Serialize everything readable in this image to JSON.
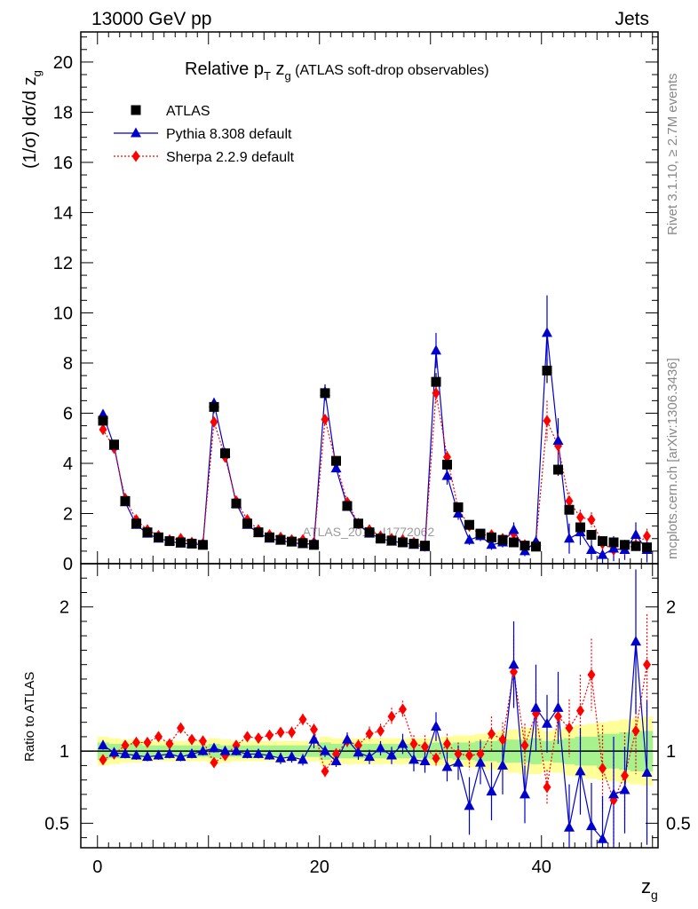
{
  "header": {
    "left": "13000 GeV pp",
    "right": "Jets",
    "side_top": "Rivet 3.1.10, ≥ 2.7M events",
    "side_bottom": "mcplots.cern.ch [arXiv:1306.3436]",
    "watermark": "ATLAS_2019_I1772062"
  },
  "colors": {
    "data": "#000000",
    "pythia": "#0000cc",
    "sherpa": "#ff0000",
    "band_inner": "#a6f28c",
    "band_outer": "#ffff99",
    "ratio_line": "#2e8b2e"
  },
  "chart_data": {
    "type": "scatter",
    "title": {
      "main": "Relative p",
      "sub_T": "T",
      "zg": " z",
      "sub_g": "g",
      "rest": " (ATLAS soft-drop observables)"
    },
    "ylabel_main": "(1/σ) dσ/d z",
    "ylabel_sub": "g",
    "ylabel_ratio": "Ratio to ATLAS",
    "xlabel": "z",
    "xlabel_sub": "g",
    "xlim": [
      -1.5,
      50.5
    ],
    "ylim_main": [
      0,
      21.2
    ],
    "ylim_ratio": [
      0.33,
      2.3
    ],
    "x_ticks": [
      0,
      20,
      40
    ],
    "x_tick_labels": [
      "0",
      "20",
      "40"
    ],
    "y_ticks_main": [
      0,
      2,
      4,
      6,
      8,
      10,
      12,
      14,
      16,
      18,
      20
    ],
    "y_tick_labels_main": [
      "0",
      "2",
      "4",
      "6",
      "8",
      "10",
      "12",
      "14",
      "16",
      "18",
      "20"
    ],
    "y_ticks_ratio": [
      0.5,
      1,
      2
    ],
    "y_tick_labels_ratio": [
      "0.5",
      "1",
      "2"
    ],
    "legend": [
      {
        "name": "ATLAS",
        "marker": "square"
      },
      {
        "name": "Pythia 8.308 default",
        "marker": "triangle"
      },
      {
        "name": "Sherpa 2.2.9 default",
        "marker": "diamond"
      }
    ],
    "x": [
      0.5,
      1.5,
      2.5,
      3.5,
      4.5,
      5.5,
      6.5,
      7.5,
      8.5,
      9.5,
      10.5,
      11.5,
      12.5,
      13.5,
      14.5,
      15.5,
      16.5,
      17.5,
      18.5,
      19.5,
      20.5,
      21.5,
      22.5,
      23.5,
      24.5,
      25.5,
      26.5,
      27.5,
      28.5,
      29.5,
      30.5,
      31.5,
      32.5,
      33.5,
      34.5,
      35.5,
      36.5,
      37.5,
      38.5,
      39.5,
      40.5,
      41.5,
      42.5,
      43.5,
      44.5,
      45.5,
      46.5,
      47.5,
      48.5,
      49.5
    ],
    "series": [
      {
        "name": "ATLAS",
        "values": [
          5.7,
          4.75,
          2.5,
          1.6,
          1.25,
          1.05,
          0.9,
          0.85,
          0.8,
          0.75,
          6.25,
          4.4,
          2.4,
          1.6,
          1.25,
          1.05,
          0.95,
          0.88,
          0.82,
          0.75,
          6.8,
          4.1,
          2.3,
          1.6,
          1.25,
          1.0,
          0.92,
          0.85,
          0.8,
          0.72,
          7.25,
          3.95,
          2.25,
          1.55,
          1.2,
          1.05,
          0.95,
          0.85,
          0.72,
          0.68,
          7.7,
          3.75,
          2.15,
          1.45,
          1.15,
          0.9,
          0.85,
          0.75,
          0.7,
          0.65
        ],
        "errors": [
          0.2,
          0.15,
          0.1,
          0.07,
          0.05,
          0.05,
          0.04,
          0.04,
          0.04,
          0.04,
          0.25,
          0.15,
          0.1,
          0.07,
          0.05,
          0.05,
          0.04,
          0.04,
          0.04,
          0.04,
          0.3,
          0.15,
          0.1,
          0.07,
          0.05,
          0.05,
          0.04,
          0.04,
          0.04,
          0.04,
          0.35,
          0.2,
          0.12,
          0.08,
          0.06,
          0.06,
          0.05,
          0.05,
          0.05,
          0.05,
          0.5,
          0.25,
          0.15,
          0.1,
          0.08,
          0.07,
          0.07,
          0.07,
          0.07,
          0.07
        ]
      },
      {
        "name": "Pythia 8.308 default",
        "values": [
          5.95,
          4.7,
          2.45,
          1.55,
          1.2,
          1.0,
          0.9,
          0.8,
          0.8,
          0.75,
          6.4,
          4.4,
          2.4,
          1.55,
          1.22,
          1.0,
          0.92,
          0.85,
          0.78,
          0.8,
          6.85,
          3.8,
          2.3,
          1.58,
          1.2,
          1.02,
          0.88,
          0.85,
          0.75,
          0.66,
          8.5,
          3.5,
          2.0,
          0.95,
          1.1,
          0.75,
          0.85,
          1.35,
          0.5,
          0.88,
          9.2,
          4.9,
          1.0,
          1.25,
          0.55,
          0.35,
          0.6,
          0.55,
          1.15,
          0.55
        ],
        "errors": [
          0.15,
          0.12,
          0.08,
          0.06,
          0.05,
          0.05,
          0.04,
          0.04,
          0.04,
          0.04,
          0.2,
          0.12,
          0.08,
          0.06,
          0.05,
          0.05,
          0.04,
          0.04,
          0.04,
          0.05,
          0.3,
          0.15,
          0.1,
          0.08,
          0.06,
          0.06,
          0.06,
          0.06,
          0.06,
          0.06,
          0.7,
          0.35,
          0.25,
          0.2,
          0.2,
          0.2,
          0.2,
          0.3,
          0.2,
          0.25,
          1.5,
          0.9,
          0.6,
          0.5,
          0.4,
          0.4,
          0.5,
          0.4,
          0.5,
          0.5
        ]
      },
      {
        "name": "Sherpa 2.2.9 default",
        "values": [
          5.35,
          4.6,
          2.6,
          1.75,
          1.35,
          1.12,
          0.95,
          1.0,
          0.85,
          0.8,
          5.65,
          4.25,
          2.5,
          1.75,
          1.35,
          1.15,
          1.05,
          0.95,
          0.95,
          0.85,
          5.75,
          4.0,
          2.45,
          1.6,
          1.35,
          1.1,
          1.0,
          0.95,
          0.85,
          0.7,
          6.8,
          4.25,
          2.2,
          1.5,
          1.15,
          1.15,
          1.0,
          1.2,
          0.75,
          0.85,
          5.7,
          4.7,
          2.5,
          1.85,
          1.75,
          0.8,
          0.55,
          0.6,
          0.75,
          1.1
        ],
        "errors": [
          0.12,
          0.1,
          0.07,
          0.05,
          0.05,
          0.05,
          0.04,
          0.04,
          0.04,
          0.04,
          0.15,
          0.1,
          0.07,
          0.06,
          0.05,
          0.05,
          0.05,
          0.05,
          0.05,
          0.05,
          0.2,
          0.12,
          0.08,
          0.06,
          0.06,
          0.06,
          0.06,
          0.06,
          0.06,
          0.06,
          0.4,
          0.25,
          0.15,
          0.12,
          0.12,
          0.12,
          0.12,
          0.15,
          0.12,
          0.12,
          0.8,
          0.5,
          0.35,
          0.3,
          0.3,
          0.25,
          0.25,
          0.25,
          0.25,
          0.3
        ]
      }
    ],
    "ratio": {
      "pythia": [
        1.04,
        0.99,
        0.98,
        0.97,
        0.96,
        0.97,
        0.98,
        0.96,
        0.98,
        1.0,
        1.02,
        1.0,
        1.0,
        0.98,
        0.98,
        0.97,
        0.95,
        0.96,
        0.94,
        1.08,
        1.0,
        0.93,
        1.08,
        0.99,
        0.96,
        1.02,
        0.97,
        1.05,
        0.94,
        0.93,
        1.17,
        0.89,
        0.92,
        0.62,
        0.92,
        0.72,
        0.9,
        1.6,
        0.7,
        1.3,
        1.19,
        1.3,
        0.47,
        0.86,
        0.48,
        0.39,
        0.7,
        0.73,
        1.76,
        0.85
      ],
      "pythia_err": [
        0.03,
        0.03,
        0.03,
        0.03,
        0.03,
        0.03,
        0.03,
        0.03,
        0.03,
        0.03,
        0.03,
        0.03,
        0.03,
        0.03,
        0.03,
        0.03,
        0.04,
        0.04,
        0.04,
        0.06,
        0.04,
        0.04,
        0.05,
        0.05,
        0.05,
        0.05,
        0.06,
        0.07,
        0.08,
        0.08,
        0.1,
        0.1,
        0.12,
        0.2,
        0.15,
        0.2,
        0.2,
        0.3,
        0.2,
        0.3,
        0.2,
        0.25,
        0.3,
        0.3,
        0.3,
        0.3,
        0.4,
        0.3,
        0.5,
        0.5
      ],
      "sherpa": [
        0.94,
        0.98,
        1.04,
        1.06,
        1.06,
        1.1,
        1.05,
        1.16,
        1.08,
        1.07,
        0.92,
        0.97,
        1.04,
        1.1,
        1.09,
        1.11,
        1.13,
        1.13,
        1.22,
        1.15,
        0.86,
        0.98,
        1.07,
        1.04,
        1.12,
        1.14,
        1.24,
        1.29,
        1.05,
        1.03,
        0.95,
        1.05,
        0.98,
        0.97,
        0.98,
        1.12,
        1.08,
        1.55,
        1.04,
        1.26,
        0.75,
        1.24,
        1.16,
        1.28,
        1.53,
        0.88,
        0.66,
        0.83,
        1.14,
        1.6
      ],
      "sherpa_err": [
        0.02,
        0.02,
        0.02,
        0.02,
        0.02,
        0.02,
        0.02,
        0.02,
        0.02,
        0.02,
        0.03,
        0.03,
        0.03,
        0.03,
        0.03,
        0.03,
        0.03,
        0.04,
        0.04,
        0.04,
        0.04,
        0.04,
        0.04,
        0.04,
        0.05,
        0.05,
        0.06,
        0.06,
        0.06,
        0.08,
        0.06,
        0.07,
        0.08,
        0.1,
        0.1,
        0.12,
        0.12,
        0.25,
        0.15,
        0.2,
        0.12,
        0.15,
        0.2,
        0.25,
        0.25,
        0.3,
        0.3,
        0.3,
        0.3,
        0.35
      ],
      "band_inner": [
        0.06,
        0.05,
        0.05,
        0.05,
        0.04,
        0.04,
        0.04,
        0.04,
        0.04,
        0.04,
        0.05,
        0.04,
        0.04,
        0.04,
        0.04,
        0.04,
        0.04,
        0.04,
        0.04,
        0.04,
        0.06,
        0.05,
        0.05,
        0.05,
        0.05,
        0.05,
        0.05,
        0.05,
        0.05,
        0.05,
        0.06,
        0.05,
        0.06,
        0.06,
        0.07,
        0.07,
        0.08,
        0.08,
        0.08,
        0.09,
        0.07,
        0.08,
        0.09,
        0.1,
        0.1,
        0.12,
        0.12,
        0.13,
        0.14,
        0.14
      ],
      "band_outer": [
        0.1,
        0.09,
        0.08,
        0.08,
        0.07,
        0.07,
        0.07,
        0.07,
        0.07,
        0.07,
        0.09,
        0.08,
        0.07,
        0.07,
        0.07,
        0.07,
        0.07,
        0.07,
        0.07,
        0.07,
        0.1,
        0.09,
        0.09,
        0.09,
        0.09,
        0.09,
        0.09,
        0.09,
        0.09,
        0.09,
        0.1,
        0.1,
        0.11,
        0.11,
        0.12,
        0.13,
        0.14,
        0.15,
        0.16,
        0.16,
        0.14,
        0.15,
        0.17,
        0.18,
        0.19,
        0.2,
        0.21,
        0.22,
        0.23,
        0.24
      ]
    }
  }
}
